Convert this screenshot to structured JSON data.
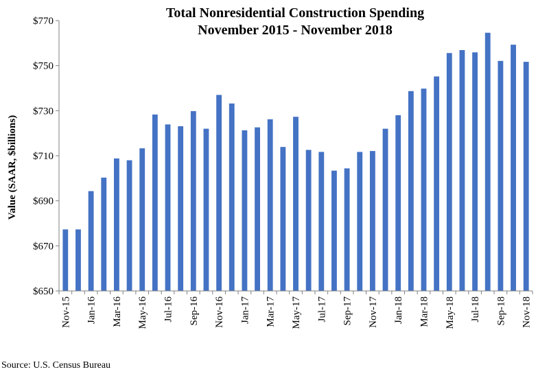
{
  "chart_data": {
    "type": "bar",
    "title": "Total Nonresidential Construction Spending",
    "subtitle": "November 2015 - November 2018",
    "ylabel": "Value (SAAR, $billions)",
    "xlabel": "",
    "ylim": [
      650,
      770
    ],
    "y_ticks": [
      "$650",
      "$670",
      "$690",
      "$710",
      "$730",
      "$750",
      "$770"
    ],
    "bar_color": "#4472c4",
    "grid": false,
    "categories": [
      "Nov-15",
      "Dec-15",
      "Jan-16",
      "Feb-16",
      "Mar-16",
      "Apr-16",
      "May-16",
      "Jun-16",
      "Jul-16",
      "Aug-16",
      "Sep-16",
      "Oct-16",
      "Nov-16",
      "Dec-16",
      "Jan-17",
      "Feb-17",
      "Mar-17",
      "Apr-17",
      "May-17",
      "Jun-17",
      "Jul-17",
      "Aug-17",
      "Sep-17",
      "Oct-17",
      "Nov-17",
      "Dec-17",
      "Jan-18",
      "Feb-18",
      "Mar-18",
      "Apr-18",
      "May-18",
      "Jun-18",
      "Jul-18",
      "Aug-18",
      "Sep-18",
      "Oct-18",
      "Nov-18"
    ],
    "x_tick_labels": [
      "Nov-15",
      "",
      "Jan-16",
      "",
      "Mar-16",
      "",
      "May-16",
      "",
      "Jul-16",
      "",
      "Sep-16",
      "",
      "Nov-16",
      "",
      "Jan-17",
      "",
      "Mar-17",
      "",
      "May-17",
      "",
      "Jul-17",
      "",
      "Sep-17",
      "",
      "Nov-17",
      "",
      "Jan-18",
      "",
      "Mar-18",
      "",
      "May-18",
      "",
      "Jul-18",
      "",
      "Sep-18",
      "",
      "Nov-18"
    ],
    "values": [
      677.3,
      677.3,
      694.3,
      700.3,
      708.8,
      708.0,
      713.3,
      728.3,
      723.9,
      723.1,
      729.8,
      722.0,
      737.0,
      733.2,
      721.3,
      722.6,
      726.2,
      713.9,
      727.3,
      712.6,
      711.7,
      703.4,
      704.4,
      711.7,
      712.1,
      722.0,
      728.0,
      738.7,
      739.8,
      745.2,
      755.6,
      756.9,
      755.9,
      764.6,
      752.1,
      759.3,
      751.7
    ]
  },
  "source": "Source:  U.S. Census Bureau"
}
